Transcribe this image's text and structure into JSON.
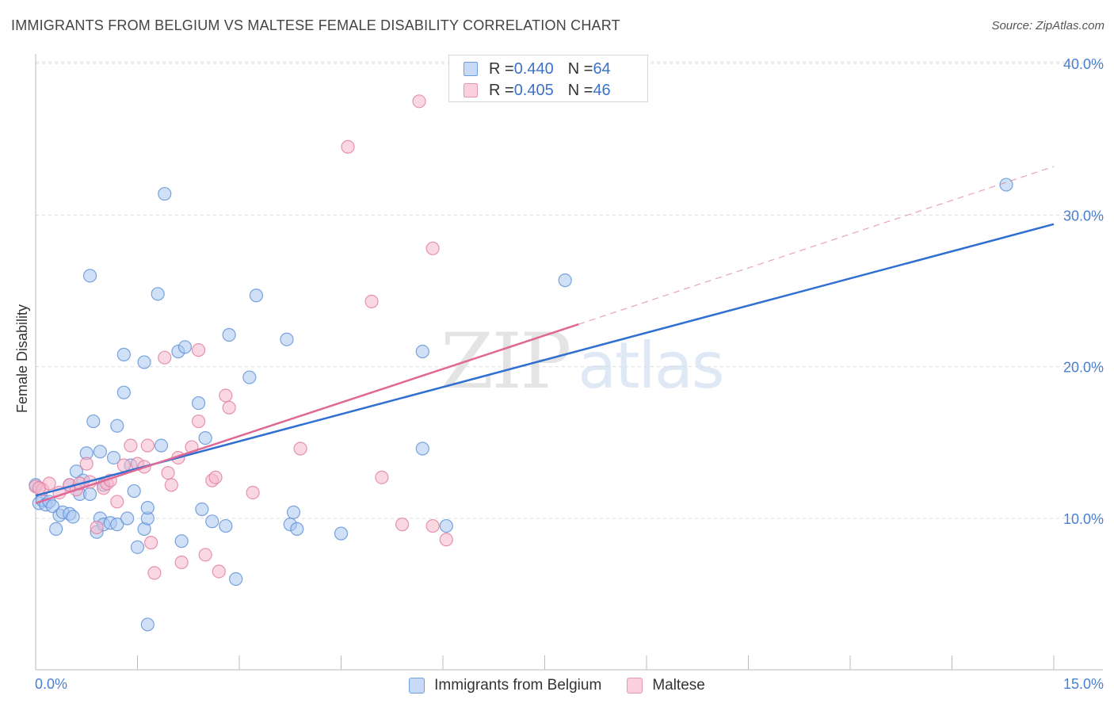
{
  "header": {
    "title": "IMMIGRANTS FROM BELGIUM VS MALTESE FEMALE DISABILITY CORRELATION CHART",
    "source": "Source: ZipAtlas.com"
  },
  "watermark": {
    "zip": "ZIP",
    "atlas": "atlas"
  },
  "legend": {
    "rows": [
      {
        "r_label": "R = ",
        "r_value": "0.440",
        "n_label": "N = ",
        "n_value": "64",
        "color": "#a9c6f0"
      },
      {
        "r_label": "R = ",
        "r_value": "0.405",
        "n_label": "N = ",
        "n_value": "46",
        "color": "#f6b8cb"
      }
    ]
  },
  "chart_data": {
    "type": "scatter",
    "title": "IMMIGRANTS FROM BELGIUM VS MALTESE FEMALE DISABILITY CORRELATION CHART",
    "xlabel": "",
    "ylabel": "Female Disability",
    "xlim": [
      0,
      15
    ],
    "ylim": [
      0,
      42
    ],
    "x_tick_labels": [
      "0.0%",
      "15.0%"
    ],
    "y_ticks": [
      10,
      20,
      30,
      40
    ],
    "y_tick_labels": [
      "10.0%",
      "20.0%",
      "30.0%",
      "40.0%"
    ],
    "grid": true,
    "legend_position": "top-center",
    "series": [
      {
        "name": "Immigrants from Belgium",
        "color": "#5b8fd6",
        "fill": "#a9c6f0",
        "trend": {
          "x": [
            0,
            15
          ],
          "y": [
            11.5,
            29.4
          ]
        },
        "points": [
          [
            0.0,
            12.2
          ],
          [
            0.05,
            11.0
          ],
          [
            0.1,
            11.2
          ],
          [
            0.15,
            10.9
          ],
          [
            0.2,
            11.1
          ],
          [
            0.25,
            10.8
          ],
          [
            0.3,
            9.3
          ],
          [
            0.35,
            10.2
          ],
          [
            0.4,
            10.4
          ],
          [
            0.5,
            12.2
          ],
          [
            0.5,
            10.3
          ],
          [
            0.55,
            10.1
          ],
          [
            0.6,
            13.1
          ],
          [
            0.65,
            11.6
          ],
          [
            0.7,
            12.5
          ],
          [
            0.75,
            14.3
          ],
          [
            0.8,
            11.6
          ],
          [
            0.85,
            16.4
          ],
          [
            0.9,
            9.1
          ],
          [
            0.95,
            10.0
          ],
          [
            0.95,
            14.4
          ],
          [
            1.0,
            12.2
          ],
          [
            1.0,
            9.6
          ],
          [
            0.8,
            26.0
          ],
          [
            1.1,
            9.7
          ],
          [
            1.15,
            14.0
          ],
          [
            1.2,
            16.1
          ],
          [
            1.2,
            9.6
          ],
          [
            1.3,
            20.8
          ],
          [
            1.3,
            18.3
          ],
          [
            1.35,
            10.0
          ],
          [
            1.4,
            13.5
          ],
          [
            1.45,
            11.8
          ],
          [
            1.5,
            8.1
          ],
          [
            1.6,
            9.3
          ],
          [
            1.6,
            20.3
          ],
          [
            1.65,
            10.0
          ],
          [
            1.65,
            10.7
          ],
          [
            1.8,
            24.8
          ],
          [
            1.85,
            14.8
          ],
          [
            1.9,
            31.4
          ],
          [
            2.1,
            21.0
          ],
          [
            2.15,
            8.5
          ],
          [
            2.2,
            21.3
          ],
          [
            2.4,
            17.6
          ],
          [
            2.45,
            10.6
          ],
          [
            2.5,
            15.3
          ],
          [
            2.6,
            9.8
          ],
          [
            2.8,
            9.5
          ],
          [
            2.85,
            22.1
          ],
          [
            2.95,
            6.0
          ],
          [
            3.15,
            19.3
          ],
          [
            3.25,
            24.7
          ],
          [
            3.7,
            21.8
          ],
          [
            3.75,
            9.6
          ],
          [
            3.8,
            10.4
          ],
          [
            3.85,
            9.3
          ],
          [
            4.5,
            9.0
          ],
          [
            5.7,
            21.0
          ],
          [
            5.7,
            14.6
          ],
          [
            6.05,
            9.5
          ],
          [
            7.8,
            25.7
          ],
          [
            14.3,
            32.0
          ],
          [
            1.65,
            3.0
          ]
        ]
      },
      {
        "name": "Maltese",
        "color": "#e07aa0",
        "fill": "#f6b8cb",
        "trend": {
          "x": [
            0,
            8.0
          ],
          "y": [
            11.0,
            22.8
          ]
        },
        "trend_extended": {
          "x": [
            8.0,
            15
          ],
          "y": [
            22.8,
            33.2
          ]
        },
        "points": [
          [
            0.0,
            12.1
          ],
          [
            0.1,
            11.9
          ],
          [
            0.2,
            12.3
          ],
          [
            0.35,
            11.7
          ],
          [
            0.5,
            12.2
          ],
          [
            0.6,
            11.9
          ],
          [
            0.65,
            12.3
          ],
          [
            0.75,
            13.6
          ],
          [
            0.8,
            12.4
          ],
          [
            0.9,
            9.4
          ],
          [
            1.0,
            12.0
          ],
          [
            1.05,
            12.3
          ],
          [
            1.1,
            12.5
          ],
          [
            1.2,
            11.1
          ],
          [
            1.3,
            13.5
          ],
          [
            1.4,
            14.8
          ],
          [
            1.5,
            13.6
          ],
          [
            1.6,
            13.4
          ],
          [
            1.65,
            14.8
          ],
          [
            1.7,
            8.4
          ],
          [
            1.75,
            6.4
          ],
          [
            1.9,
            20.6
          ],
          [
            1.95,
            13.0
          ],
          [
            2.0,
            12.2
          ],
          [
            2.1,
            14.0
          ],
          [
            2.15,
            7.1
          ],
          [
            2.3,
            14.7
          ],
          [
            2.4,
            21.1
          ],
          [
            2.4,
            16.4
          ],
          [
            2.5,
            7.6
          ],
          [
            2.6,
            12.5
          ],
          [
            2.65,
            12.7
          ],
          [
            2.7,
            6.5
          ],
          [
            2.8,
            18.1
          ],
          [
            2.85,
            17.3
          ],
          [
            3.2,
            11.7
          ],
          [
            3.9,
            14.6
          ],
          [
            4.6,
            34.5
          ],
          [
            4.95,
            24.3
          ],
          [
            5.1,
            12.7
          ],
          [
            5.4,
            9.6
          ],
          [
            5.65,
            37.5
          ],
          [
            5.85,
            9.5
          ],
          [
            5.85,
            27.8
          ],
          [
            6.05,
            8.6
          ],
          [
            0.05,
            12.0
          ]
        ]
      }
    ]
  },
  "bottom_legend": [
    {
      "label": "Immigrants from Belgium",
      "color": "#a9c6f0",
      "border": "#5b8fd6"
    },
    {
      "label": "Maltese",
      "color": "#f6b8cb",
      "border": "#e07aa0"
    }
  ]
}
